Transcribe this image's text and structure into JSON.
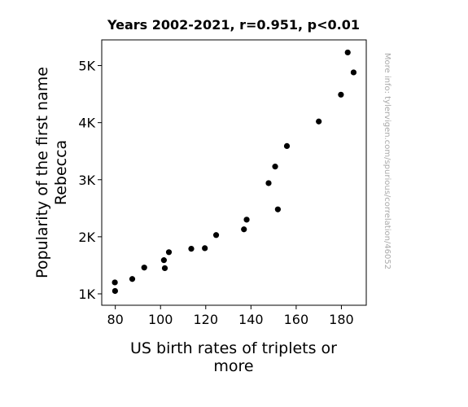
{
  "chart_data": {
    "type": "scatter",
    "title": "Years 2002-2021, r=0.951, p<0.01",
    "xlabel_lines": [
      "US birth rates of triplets or",
      "more"
    ],
    "ylabel_lines": [
      "Popularity of the first name",
      "Rebecca"
    ],
    "xlim": [
      74,
      191
    ],
    "ylim": [
      800,
      5450
    ],
    "x_ticks": [
      80,
      100,
      120,
      140,
      160,
      180
    ],
    "x_tick_labels": [
      "80",
      "100",
      "120",
      "140",
      "160",
      "180"
    ],
    "y_ticks": [
      1000,
      2000,
      3000,
      4000,
      5000
    ],
    "y_tick_labels": [
      "1K",
      "2K",
      "3K",
      "4K",
      "5K"
    ],
    "grid": false,
    "marker_color": "#000000",
    "points": [
      {
        "x": 79.8,
        "y": 1200
      },
      {
        "x": 79.9,
        "y": 1050
      },
      {
        "x": 87.5,
        "y": 1260
      },
      {
        "x": 92.8,
        "y": 1460
      },
      {
        "x": 101.5,
        "y": 1590
      },
      {
        "x": 101.9,
        "y": 1450
      },
      {
        "x": 103.7,
        "y": 1730
      },
      {
        "x": 113.6,
        "y": 1790
      },
      {
        "x": 119.6,
        "y": 1800
      },
      {
        "x": 124.6,
        "y": 2030
      },
      {
        "x": 136.9,
        "y": 2130
      },
      {
        "x": 138.1,
        "y": 2300
      },
      {
        "x": 147.8,
        "y": 2940
      },
      {
        "x": 150.7,
        "y": 3230
      },
      {
        "x": 151.9,
        "y": 2480
      },
      {
        "x": 155.9,
        "y": 3590
      },
      {
        "x": 170.0,
        "y": 4020
      },
      {
        "x": 179.8,
        "y": 4490
      },
      {
        "x": 182.8,
        "y": 5230
      },
      {
        "x": 185.4,
        "y": 4880
      }
    ]
  },
  "watermark": "More info: tylervigen.com/spurious/correlation/46052"
}
